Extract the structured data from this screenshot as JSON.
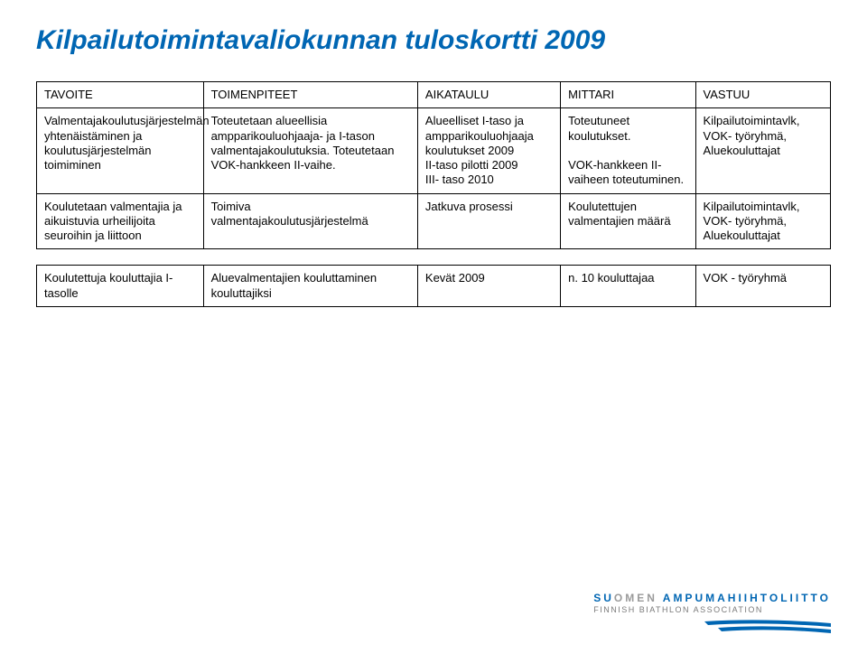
{
  "title": "Kilpailutoimintavaliokunnan tuloskortti 2009",
  "headers": [
    "TAVOITE",
    "TOIMENPITEET",
    "AIKATAULU",
    "MITTARI",
    "VASTUU"
  ],
  "rows": [
    {
      "tavoite": "Valmentajakoulutusjärjestelmän yhtenäistäminen ja koulutusjärjestelmän toimiminen",
      "toimenpiteet": "Toteutetaan alueellisia ampparikouluohjaaja- ja I-tason valmentajakoulutuksia. Toteutetaan VOK-hankkeen II-vaihe.",
      "aikataulu": "Alueelliset I-taso ja ampparikouluohjaaja koulutukset 2009\nII-taso pilotti 2009\nIII- taso 2010",
      "mittari": "Toteutuneet koulutukset.\n\nVOK-hankkeen II-vaiheen toteutuminen.",
      "vastuu": "Kilpailutoimintavlk, VOK- työryhmä, Aluekouluttajat"
    },
    {
      "tavoite": "Koulutetaan valmentajia ja aikuistuvia urheilijoita seuroihin ja liittoon",
      "toimenpiteet": "Toimiva valmentajakoulutusjärjestelmä",
      "aikataulu": "Jatkuva prosessi",
      "mittari": "Koulutettujen valmentajien määrä",
      "vastuu": "Kilpailutoimintavlk, VOK- työryhmä, Aluekouluttajat"
    },
    {
      "tavoite": "Koulutettuja kouluttajia I-tasolle",
      "toimenpiteet": "Aluevalmentajien kouluttaminen kouluttajiksi",
      "aikataulu": "Kevät 2009",
      "mittari": "n. 10 kouluttajaa",
      "vastuu": "VOK - työryhmä"
    }
  ],
  "logo": {
    "line1_parts": [
      {
        "text": "SU",
        "color": "#0066b3"
      },
      {
        "text": "OMEN ",
        "color": "#9a9a9a"
      },
      {
        "text": "AMPUMAHIIHTOLIITTO",
        "color": "#0066b3"
      }
    ],
    "line2": "FINNISH BIATHLON ASSOCIATION",
    "bar_color": "#0066b3"
  }
}
